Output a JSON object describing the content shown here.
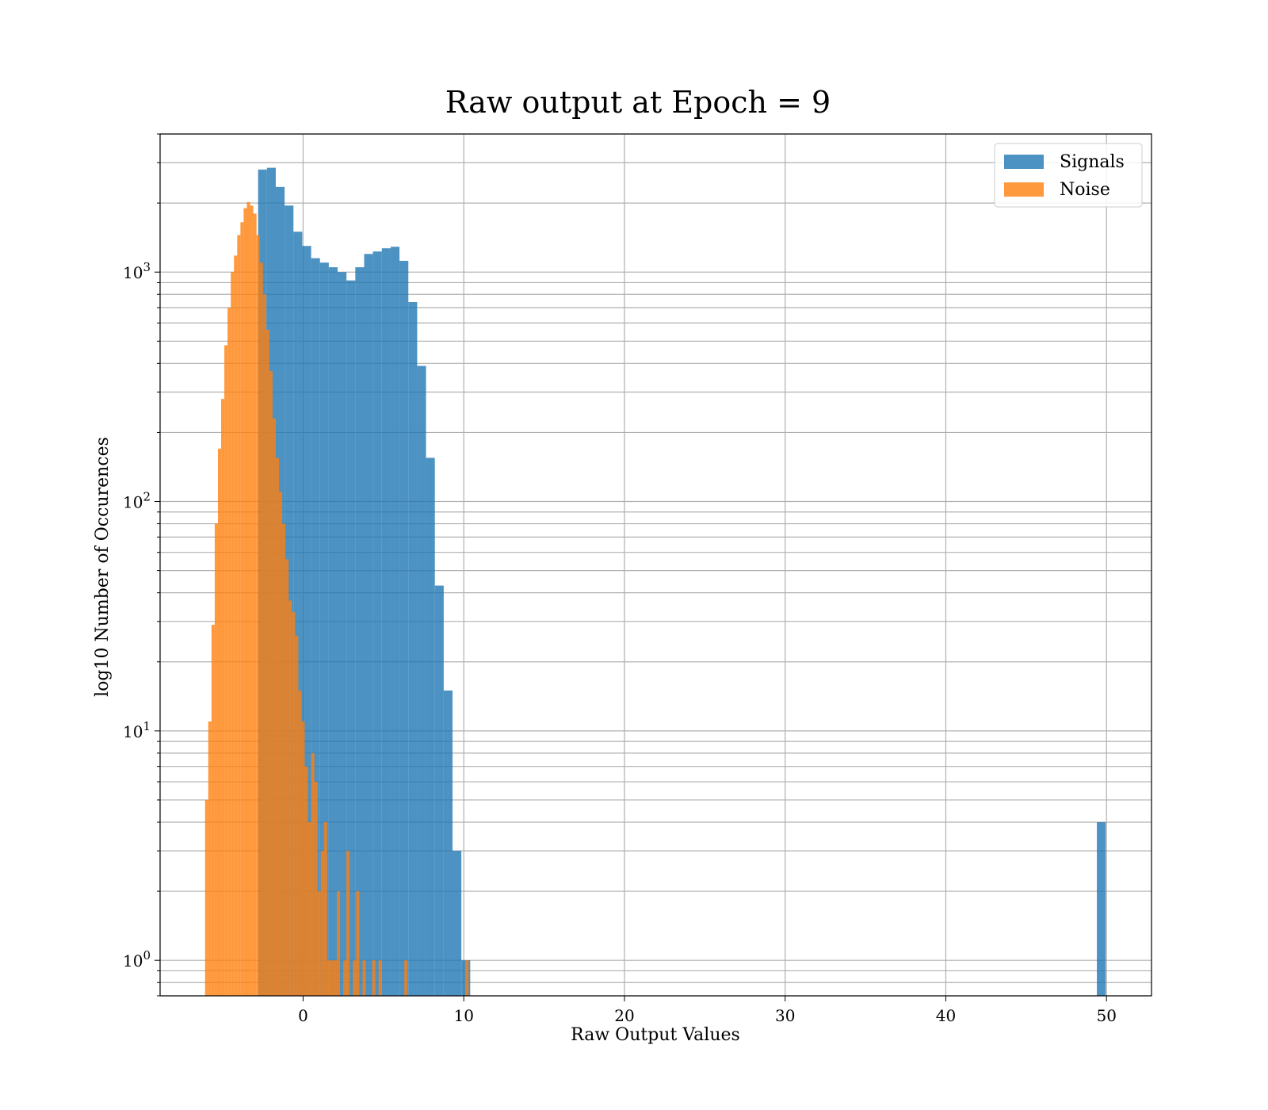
{
  "chart_data": {
    "type": "bar",
    "title": "Raw output at Epoch = 9",
    "xlabel": "Raw Output Values",
    "ylabel": "log10 Number of Occurences",
    "xlim": [
      -8.9,
      52.8
    ],
    "ylim": [
      0.7,
      4000
    ],
    "yscale": "log",
    "grid": true,
    "legend_position": "top-right",
    "x_ticks": [
      0,
      10,
      20,
      30,
      40,
      50
    ],
    "y_ticks": [
      1,
      10,
      100,
      1000
    ],
    "y_tick_labels": [
      {
        "base": "10",
        "exp": "0"
      },
      {
        "base": "10",
        "exp": "1"
      },
      {
        "base": "10",
        "exp": "2"
      },
      {
        "base": "10",
        "exp": "3"
      }
    ],
    "series": [
      {
        "name": "Signals",
        "color": "#1f77b4",
        "opacity": 0.8,
        "bins": [
          {
            "x0": -2.8,
            "x1": -2.25,
            "v": 2800
          },
          {
            "x0": -2.25,
            "x1": -1.7,
            "v": 2850
          },
          {
            "x0": -1.7,
            "x1": -1.15,
            "v": 2350
          },
          {
            "x0": -1.15,
            "x1": -0.6,
            "v": 1950
          },
          {
            "x0": -0.6,
            "x1": -0.05,
            "v": 1500
          },
          {
            "x0": -0.05,
            "x1": 0.5,
            "v": 1300
          },
          {
            "x0": 0.5,
            "x1": 1.05,
            "v": 1150
          },
          {
            "x0": 1.05,
            "x1": 1.6,
            "v": 1100
          },
          {
            "x0": 1.6,
            "x1": 2.15,
            "v": 1050
          },
          {
            "x0": 2.15,
            "x1": 2.7,
            "v": 1000
          },
          {
            "x0": 2.7,
            "x1": 3.25,
            "v": 920
          },
          {
            "x0": 3.25,
            "x1": 3.8,
            "v": 1050
          },
          {
            "x0": 3.8,
            "x1": 4.35,
            "v": 1200
          },
          {
            "x0": 4.35,
            "x1": 4.9,
            "v": 1230
          },
          {
            "x0": 4.9,
            "x1": 5.45,
            "v": 1270
          },
          {
            "x0": 5.45,
            "x1": 6.0,
            "v": 1290
          },
          {
            "x0": 6.0,
            "x1": 6.55,
            "v": 1120
          },
          {
            "x0": 6.55,
            "x1": 7.1,
            "v": 740
          },
          {
            "x0": 7.1,
            "x1": 7.65,
            "v": 390
          },
          {
            "x0": 7.65,
            "x1": 8.2,
            "v": 155
          },
          {
            "x0": 8.2,
            "x1": 8.75,
            "v": 43
          },
          {
            "x0": 8.75,
            "x1": 9.3,
            "v": 15
          },
          {
            "x0": 9.3,
            "x1": 9.85,
            "v": 3
          },
          {
            "x0": 9.85,
            "x1": 10.4,
            "v": 1
          },
          {
            "x0": 49.4,
            "x1": 49.95,
            "v": 4
          }
        ]
      },
      {
        "name": "Noise",
        "color": "#ff7f0e",
        "opacity": 0.8,
        "bins": [
          {
            "x0": -6.1,
            "x1": -5.9,
            "v": 5
          },
          {
            "x0": -5.9,
            "x1": -5.7,
            "v": 11
          },
          {
            "x0": -5.7,
            "x1": -5.5,
            "v": 29
          },
          {
            "x0": -5.5,
            "x1": -5.3,
            "v": 80
          },
          {
            "x0": -5.3,
            "x1": -5.1,
            "v": 170
          },
          {
            "x0": -5.1,
            "x1": -4.9,
            "v": 280
          },
          {
            "x0": -4.9,
            "x1": -4.7,
            "v": 480
          },
          {
            "x0": -4.7,
            "x1": -4.5,
            "v": 700
          },
          {
            "x0": -4.5,
            "x1": -4.3,
            "v": 1000
          },
          {
            "x0": -4.3,
            "x1": -4.1,
            "v": 1180
          },
          {
            "x0": -4.1,
            "x1": -3.9,
            "v": 1450
          },
          {
            "x0": -3.9,
            "x1": -3.7,
            "v": 1650
          },
          {
            "x0": -3.7,
            "x1": -3.5,
            "v": 1900
          },
          {
            "x0": -3.5,
            "x1": -3.3,
            "v": 2020
          },
          {
            "x0": -3.3,
            "x1": -3.1,
            "v": 1950
          },
          {
            "x0": -3.1,
            "x1": -2.9,
            "v": 1800
          },
          {
            "x0": -2.9,
            "x1": -2.7,
            "v": 1450
          },
          {
            "x0": -2.7,
            "x1": -2.5,
            "v": 1100
          },
          {
            "x0": -2.5,
            "x1": -2.3,
            "v": 800
          },
          {
            "x0": -2.3,
            "x1": -2.1,
            "v": 560
          },
          {
            "x0": -2.1,
            "x1": -1.9,
            "v": 370
          },
          {
            "x0": -1.9,
            "x1": -1.7,
            "v": 230
          },
          {
            "x0": -1.7,
            "x1": -1.5,
            "v": 155
          },
          {
            "x0": -1.5,
            "x1": -1.3,
            "v": 110
          },
          {
            "x0": -1.3,
            "x1": -1.1,
            "v": 80
          },
          {
            "x0": -1.1,
            "x1": -0.9,
            "v": 56
          },
          {
            "x0": -0.9,
            "x1": -0.7,
            "v": 37
          },
          {
            "x0": -0.7,
            "x1": -0.5,
            "v": 33
          },
          {
            "x0": -0.5,
            "x1": -0.3,
            "v": 26
          },
          {
            "x0": -0.3,
            "x1": -0.1,
            "v": 15
          },
          {
            "x0": -0.1,
            "x1": 0.1,
            "v": 11
          },
          {
            "x0": 0.1,
            "x1": 0.3,
            "v": 7
          },
          {
            "x0": 0.3,
            "x1": 0.5,
            "v": 4
          },
          {
            "x0": 0.5,
            "x1": 0.7,
            "v": 8
          },
          {
            "x0": 0.7,
            "x1": 0.9,
            "v": 6
          },
          {
            "x0": 0.9,
            "x1": 1.1,
            "v": 2
          },
          {
            "x0": 1.1,
            "x1": 1.3,
            "v": 3
          },
          {
            "x0": 1.3,
            "x1": 1.5,
            "v": 4
          },
          {
            "x0": 1.5,
            "x1": 1.7,
            "v": 1
          },
          {
            "x0": 1.7,
            "x1": 1.9,
            "v": 1
          },
          {
            "x0": 1.9,
            "x1": 2.1,
            "v": 1
          },
          {
            "x0": 2.1,
            "x1": 2.3,
            "v": 2
          },
          {
            "x0": 2.5,
            "x1": 2.7,
            "v": 1
          },
          {
            "x0": 2.7,
            "x1": 2.9,
            "v": 3
          },
          {
            "x0": 3.1,
            "x1": 3.3,
            "v": 1
          },
          {
            "x0": 3.3,
            "x1": 3.5,
            "v": 2
          },
          {
            "x0": 3.7,
            "x1": 3.9,
            "v": 1
          },
          {
            "x0": 4.3,
            "x1": 4.5,
            "v": 1
          },
          {
            "x0": 4.7,
            "x1": 4.9,
            "v": 1
          },
          {
            "x0": 6.3,
            "x1": 6.5,
            "v": 1
          },
          {
            "x0": 10.1,
            "x1": 10.3,
            "v": 1
          }
        ]
      }
    ]
  }
}
